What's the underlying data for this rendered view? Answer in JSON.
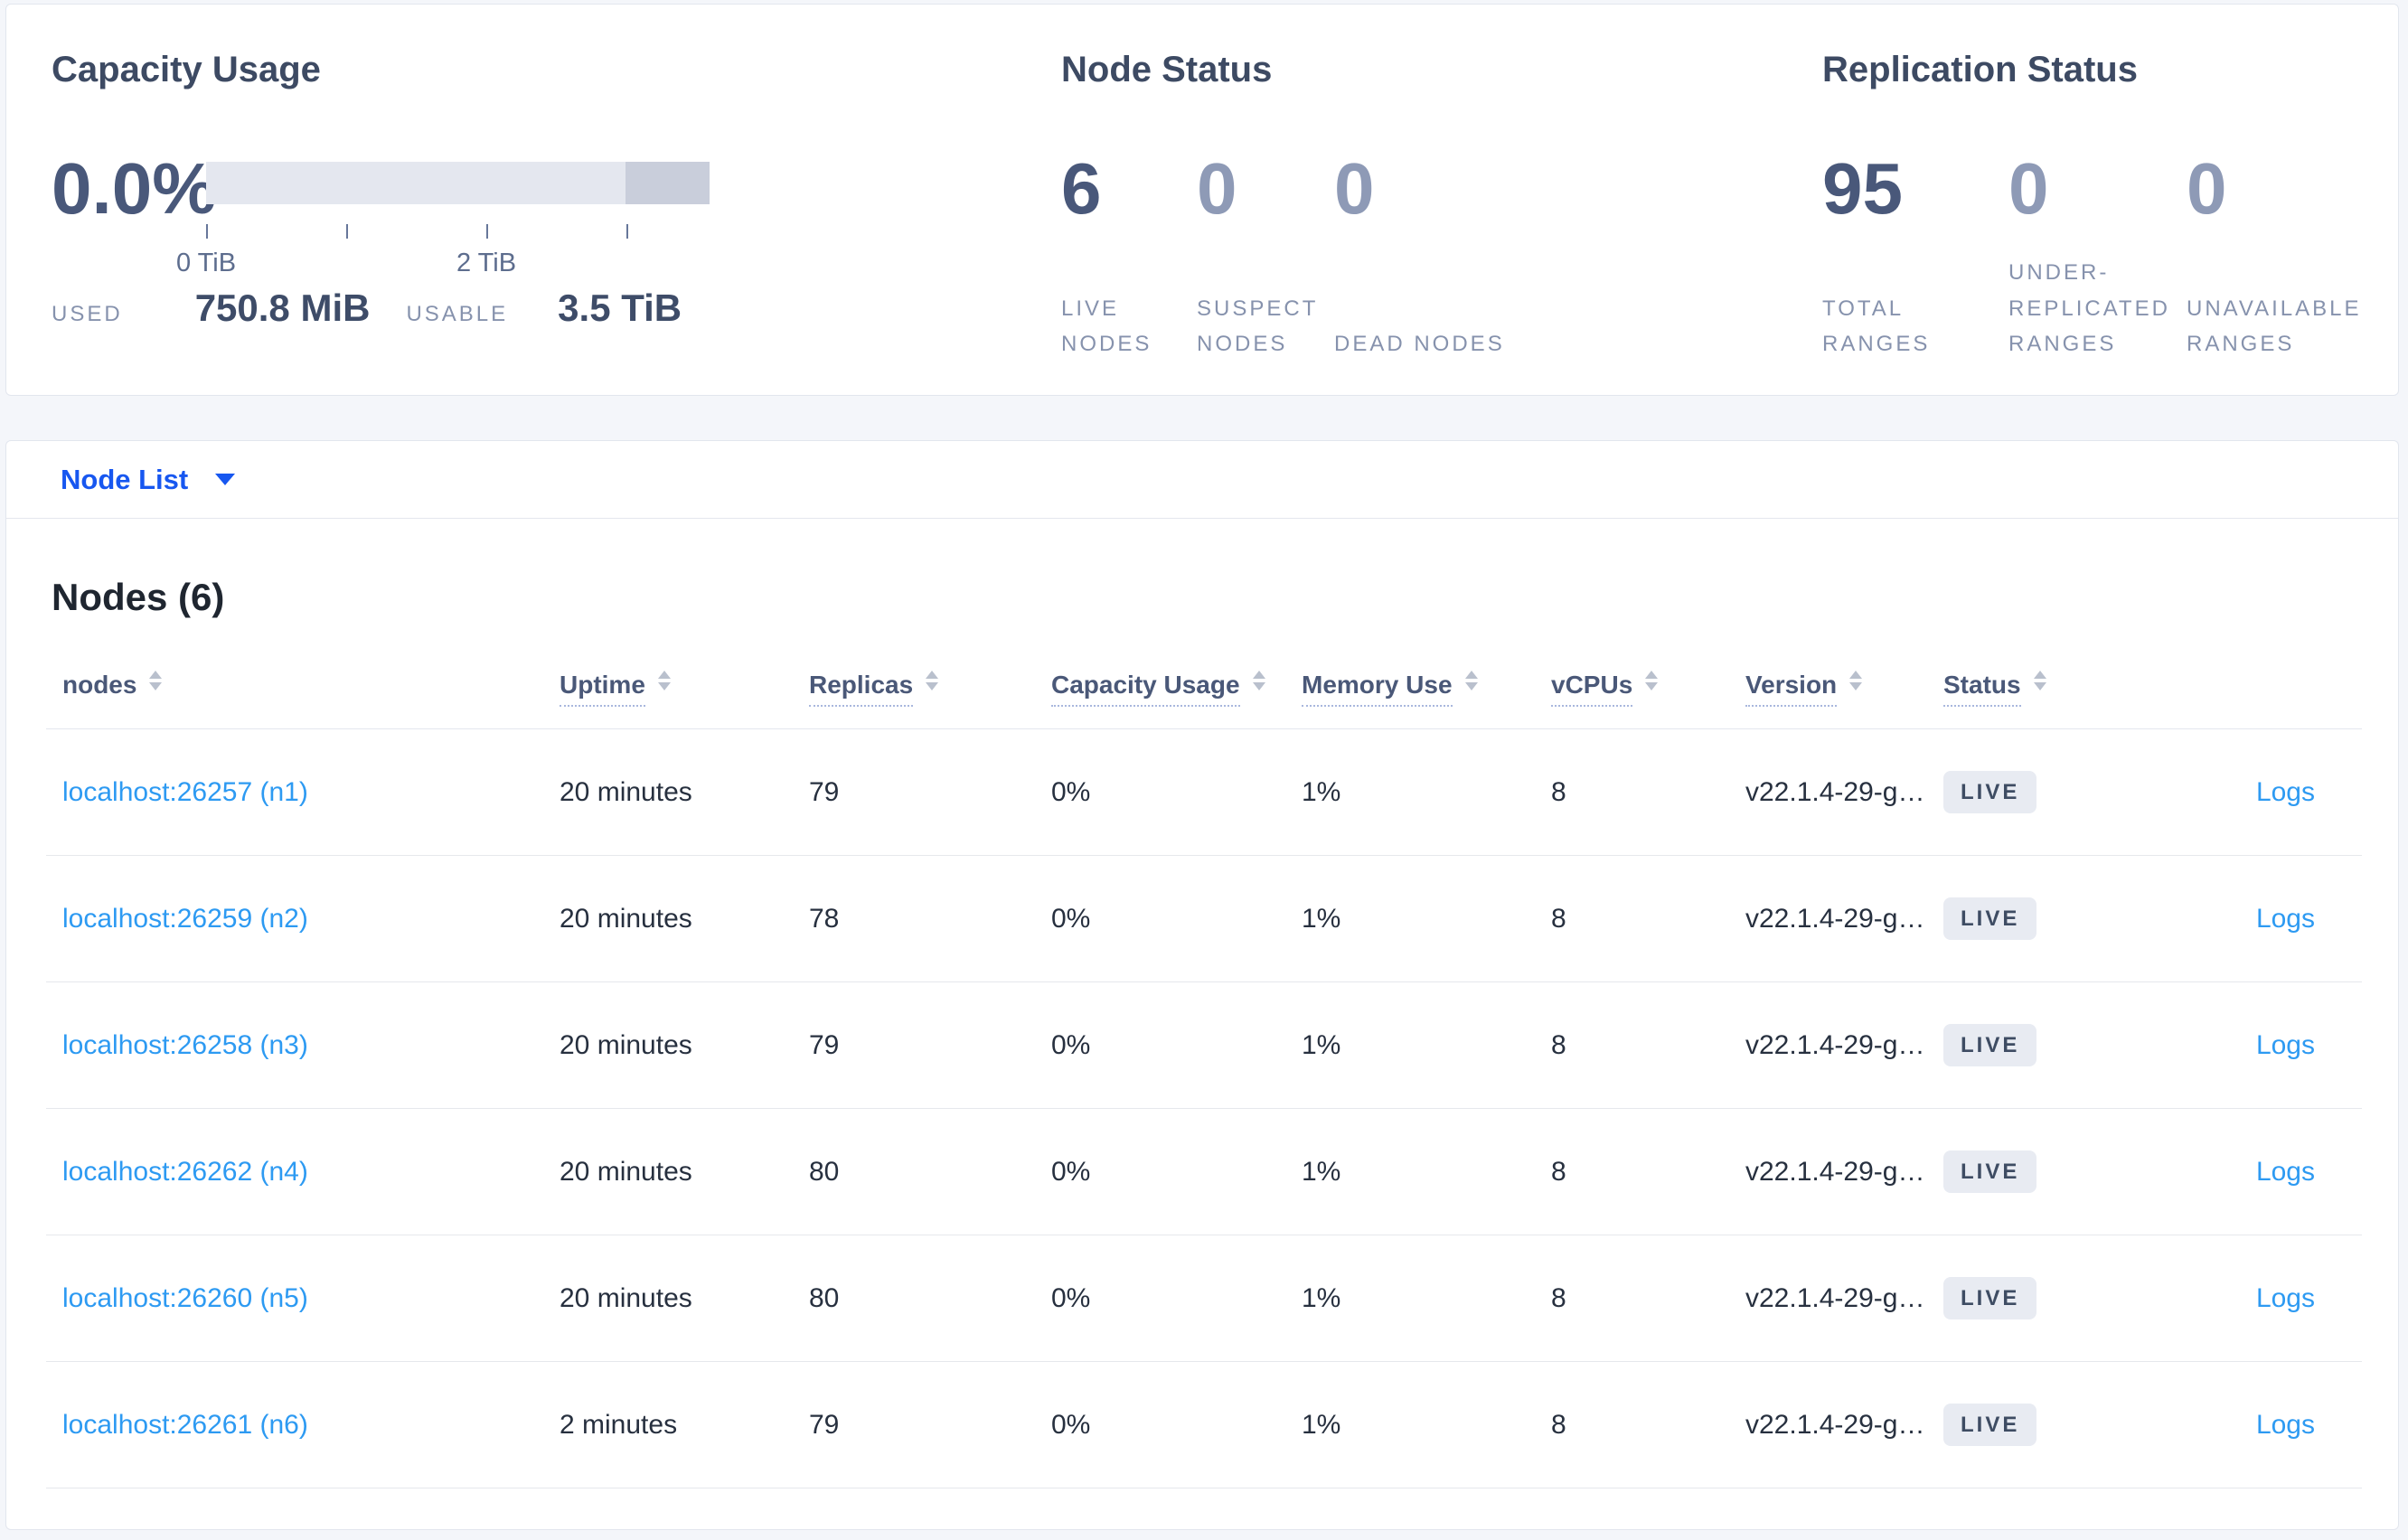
{
  "summary": {
    "capacity": {
      "title": "Capacity Usage",
      "percent": "0.0%",
      "tick_labels": [
        "0 TiB",
        "2 TiB"
      ],
      "used_label": "USED",
      "used_value": "750.8 MiB",
      "usable_label": "USABLE",
      "usable_value": "3.5 TiB"
    },
    "node_status": {
      "title": "Node Status",
      "stats": [
        {
          "value": "6",
          "label": "LIVE NODES"
        },
        {
          "value": "0",
          "label": "SUSPECT NODES"
        },
        {
          "value": "0",
          "label": "DEAD NODES"
        }
      ]
    },
    "replication": {
      "title": "Replication Status",
      "stats": [
        {
          "value": "95",
          "label": "TOTAL RANGES"
        },
        {
          "value": "0",
          "label": "UNDER-REPLICATED RANGES"
        },
        {
          "value": "0",
          "label": "UNAVAILABLE RANGES"
        }
      ]
    }
  },
  "view_selector": {
    "label": "Node List"
  },
  "nodes_section": {
    "heading": "Nodes (6)",
    "columns": [
      {
        "key": "nodes",
        "label": "nodes",
        "dotted": false
      },
      {
        "key": "uptime",
        "label": "Uptime",
        "dotted": true
      },
      {
        "key": "replicas",
        "label": "Replicas",
        "dotted": true
      },
      {
        "key": "capacity",
        "label": "Capacity Usage",
        "dotted": true
      },
      {
        "key": "memory",
        "label": "Memory Use",
        "dotted": true
      },
      {
        "key": "vcpus",
        "label": "vCPUs",
        "dotted": true
      },
      {
        "key": "version",
        "label": "Version",
        "dotted": true
      },
      {
        "key": "status",
        "label": "Status",
        "dotted": true
      }
    ],
    "rows": [
      {
        "nodes": "localhost:26257 (n1)",
        "uptime": "20 minutes",
        "replicas": "79",
        "capacity": "0%",
        "memory": "1%",
        "vcpus": "8",
        "version": "v22.1.4-29-g…",
        "status": "LIVE",
        "logs": "Logs"
      },
      {
        "nodes": "localhost:26259 (n2)",
        "uptime": "20 minutes",
        "replicas": "78",
        "capacity": "0%",
        "memory": "1%",
        "vcpus": "8",
        "version": "v22.1.4-29-g…",
        "status": "LIVE",
        "logs": "Logs"
      },
      {
        "nodes": "localhost:26258 (n3)",
        "uptime": "20 minutes",
        "replicas": "79",
        "capacity": "0%",
        "memory": "1%",
        "vcpus": "8",
        "version": "v22.1.4-29-g…",
        "status": "LIVE",
        "logs": "Logs"
      },
      {
        "nodes": "localhost:26262 (n4)",
        "uptime": "20 minutes",
        "replicas": "80",
        "capacity": "0%",
        "memory": "1%",
        "vcpus": "8",
        "version": "v22.1.4-29-g…",
        "status": "LIVE",
        "logs": "Logs"
      },
      {
        "nodes": "localhost:26260 (n5)",
        "uptime": "20 minutes",
        "replicas": "80",
        "capacity": "0%",
        "memory": "1%",
        "vcpus": "8",
        "version": "v22.1.4-29-g…",
        "status": "LIVE",
        "logs": "Logs"
      },
      {
        "nodes": "localhost:26261 (n6)",
        "uptime": "2 minutes",
        "replicas": "79",
        "capacity": "0%",
        "memory": "1%",
        "vcpus": "8",
        "version": "v22.1.4-29-g…",
        "status": "LIVE",
        "logs": "Logs"
      }
    ]
  },
  "colors": {
    "selector_blue": "#1757f0",
    "link_blue": "#2d9af2",
    "badge_bg": "#e8ebf2",
    "bar_fill": "#e4e7ef",
    "bar_dark_fill": "#c9cedb",
    "page_bg": "#f4f6fa"
  }
}
